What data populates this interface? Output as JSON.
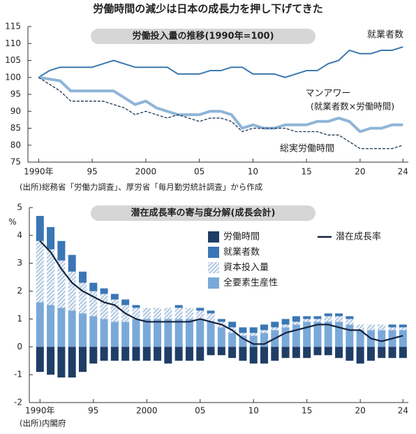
{
  "title": "労働時間の減少は日本の成長力を押し下げてきた",
  "chart_data": [
    {
      "type": "line",
      "title": "労働投入量の推移(1990年=100)",
      "source": "(出所)総務省「労働力調査」、厚労省「毎月勤労統計調査」から作成",
      "x": [
        1990,
        1991,
        1992,
        1993,
        1994,
        1995,
        1996,
        1997,
        1998,
        1999,
        2000,
        2001,
        2002,
        2003,
        2004,
        2005,
        2006,
        2007,
        2008,
        2009,
        2010,
        2011,
        2012,
        2013,
        2014,
        2015,
        2016,
        2017,
        2018,
        2019,
        2020,
        2021,
        2022,
        2023,
        2024
      ],
      "xlim": [
        1989,
        2024.5
      ],
      "xticks": [
        {
          "value": 1990,
          "label": "1990年"
        },
        {
          "value": 1995,
          "label": "95"
        },
        2000,
        {
          "value": 2005,
          "label": "05"
        },
        {
          "value": 2010,
          "label": "10"
        },
        {
          "value": 2015,
          "label": "15"
        },
        {
          "value": 2020,
          "label": "20"
        },
        {
          "value": 2024,
          "label": "24"
        }
      ],
      "ylim": [
        75,
        115
      ],
      "yticks": [
        75,
        80,
        85,
        90,
        95,
        100,
        105,
        110,
        115
      ],
      "series": [
        {
          "name": "就業者数",
          "color": "#3c78b0",
          "values": [
            100,
            102,
            103,
            103,
            103,
            103,
            104,
            105,
            104,
            103,
            103,
            103,
            103,
            101,
            101,
            101,
            102,
            102,
            103,
            103,
            101,
            101,
            101,
            100,
            101,
            102,
            102,
            104,
            105,
            108,
            107,
            107,
            108,
            108,
            109
          ]
        },
        {
          "name": "マンアワー",
          "color": "#8fb5d8",
          "values": [
            100,
            99.5,
            99,
            96,
            96,
            96,
            96,
            96,
            94,
            92,
            93,
            91,
            90,
            89,
            89,
            89,
            90,
            90,
            89,
            85,
            86,
            85,
            85,
            86,
            86,
            86,
            87,
            87,
            88,
            87,
            84,
            85,
            85,
            86,
            86
          ]
        },
        {
          "name": "総実労働時間",
          "color": "#1f3553",
          "linestyle": "dashed",
          "values": [
            100,
            98,
            96,
            93,
            93,
            93,
            93,
            92,
            91,
            89,
            90,
            89,
            88,
            89,
            88,
            87,
            88,
            88,
            87,
            84,
            85,
            85,
            85,
            85,
            84,
            84,
            84,
            83,
            83,
            81,
            79,
            79,
            79,
            79,
            80
          ]
        }
      ],
      "annotations": [
        "(就業者数×労働時間)"
      ]
    },
    {
      "type": "bar",
      "title": "潜在成長率の寄与度分解(成長会計)",
      "source": "(出所)内閣府",
      "ylabel": "%",
      "x": [
        1990,
        1991,
        1992,
        1993,
        1994,
        1995,
        1996,
        1997,
        1998,
        1999,
        2000,
        2001,
        2002,
        2003,
        2004,
        2005,
        2006,
        2007,
        2008,
        2009,
        2010,
        2011,
        2012,
        2013,
        2014,
        2015,
        2016,
        2017,
        2018,
        2019,
        2020,
        2021,
        2022,
        2023,
        2024
      ],
      "xlim": [
        1989,
        2024.5
      ],
      "xticks": [
        {
          "value": 1990,
          "label": "1990年"
        },
        {
          "value": 1995,
          "label": "95"
        },
        2000,
        {
          "value": 2005,
          "label": "05"
        },
        {
          "value": 2010,
          "label": "10"
        },
        {
          "value": 2015,
          "label": "15"
        },
        {
          "value": 2020,
          "label": "20"
        },
        {
          "value": 2024,
          "label": "24"
        }
      ],
      "ylim": [
        -2,
        5
      ],
      "yticks": [
        -2,
        -1,
        0,
        1,
        2,
        3,
        4,
        5
      ],
      "series": [
        {
          "name": "全要素生産性",
          "color": "#7aa9d8",
          "values": [
            1.6,
            1.5,
            1.4,
            1.3,
            1.2,
            1.1,
            1.0,
            0.9,
            0.9,
            1.0,
            1.0,
            1.0,
            1.0,
            1.0,
            1.0,
            1.0,
            0.9,
            0.7,
            0.5,
            0.4,
            0.4,
            0.5,
            0.6,
            0.7,
            0.8,
            0.9,
            0.9,
            0.9,
            0.9,
            0.8,
            0.6,
            0.6,
            0.6,
            0.6,
            0.6
          ]
        },
        {
          "name": "資本投入量",
          "color": "#8fb0d4",
          "hatch": true,
          "values": [
            2.2,
            2.0,
            1.7,
            1.4,
            1.1,
            0.9,
            0.9,
            0.8,
            0.6,
            0.4,
            0.4,
            0.4,
            0.4,
            0.4,
            0.4,
            0.3,
            0.3,
            0.2,
            0.2,
            0.1,
            0.1,
            0.1,
            0.1,
            0.1,
            0.1,
            0.1,
            0.1,
            0.2,
            0.2,
            0.2,
            0.2,
            0.2,
            0.2,
            0.1,
            0.1
          ]
        },
        {
          "name": "就業者数",
          "color": "#3a76b5",
          "values": [
            0.9,
            0.8,
            0.7,
            0.6,
            0.4,
            0.3,
            0.2,
            0.2,
            0.2,
            0.1,
            0,
            0,
            0,
            0.1,
            0,
            0.1,
            0.1,
            0.1,
            0.2,
            0.2,
            0.2,
            0.2,
            0.2,
            0.2,
            0.2,
            0.1,
            0.1,
            0.1,
            0.1,
            0.1,
            0,
            0,
            0,
            0.1,
            0.1
          ]
        },
        {
          "name": "労働時間",
          "color": "#1f3e66",
          "values": [
            -0.9,
            -1.0,
            -1.1,
            -1.1,
            -0.9,
            -0.6,
            -0.5,
            -0.5,
            -0.5,
            -0.5,
            -0.5,
            -0.5,
            -0.6,
            -0.5,
            -0.5,
            -0.5,
            -0.3,
            -0.3,
            -0.4,
            -0.5,
            -0.6,
            -0.6,
            -0.5,
            -0.4,
            -0.4,
            -0.4,
            -0.3,
            -0.3,
            -0.4,
            -0.5,
            -0.6,
            -0.5,
            -0.4,
            -0.4,
            -0.4
          ]
        },
        {
          "name": "潜在成長率",
          "type": "line",
          "color": "#14233d",
          "values": [
            3.8,
            3.4,
            2.8,
            2.3,
            2.0,
            1.8,
            1.6,
            1.5,
            1.2,
            1.0,
            0.9,
            0.9,
            0.9,
            0.9,
            0.9,
            1.0,
            0.9,
            0.8,
            0.6,
            0.3,
            0.1,
            0.1,
            0.3,
            0.5,
            0.6,
            0.7,
            0.8,
            0.8,
            0.7,
            0.6,
            0.6,
            0.3,
            0.2,
            0.3,
            0.4
          ]
        }
      ]
    }
  ]
}
